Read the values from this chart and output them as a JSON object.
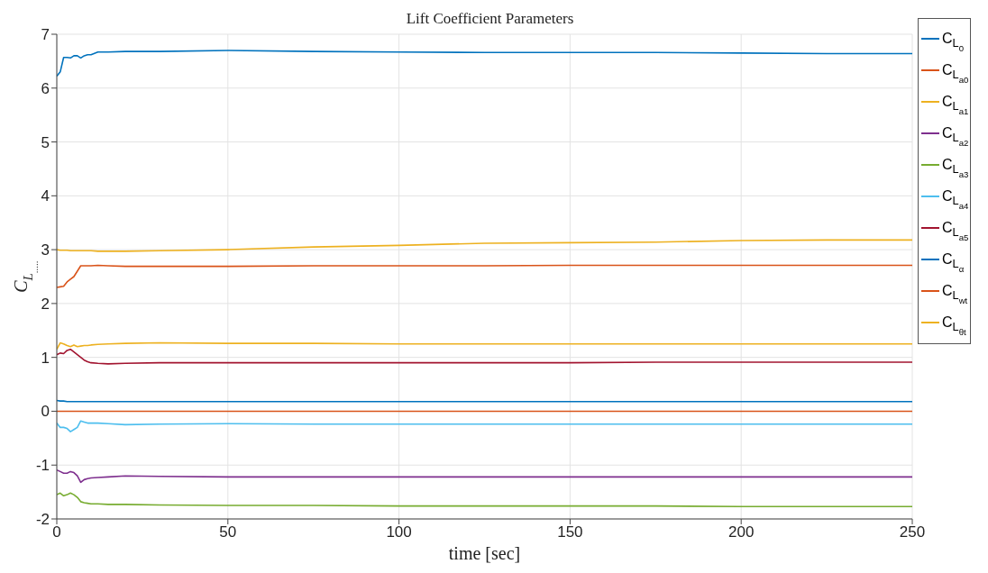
{
  "chart_data": {
    "type": "line",
    "title": "Lift Coefficient Parameters",
    "xlabel": "time [sec]",
    "ylabel": "C$_{L}$$_{.....}$",
    "x": [
      0,
      1,
      2,
      3,
      4,
      5,
      6,
      7,
      8,
      9,
      10,
      12,
      15,
      20,
      30,
      50,
      75,
      100,
      125,
      150,
      175,
      200,
      225,
      250
    ],
    "series": [
      {
        "name": "C$_{L}$$_{0}$",
        "color": "#0072bd",
        "values": [
          6.22,
          6.3,
          6.57,
          6.57,
          6.56,
          6.6,
          6.6,
          6.56,
          6.6,
          6.62,
          6.62,
          6.67,
          6.67,
          6.68,
          6.68,
          6.7,
          6.68,
          6.67,
          6.66,
          6.66,
          6.66,
          6.65,
          6.64,
          6.64
        ]
      },
      {
        "name": "C$_{L}$$_{a0}$",
        "color": "#d95319",
        "values": [
          2.3,
          2.31,
          2.32,
          2.4,
          2.45,
          2.5,
          2.6,
          2.7,
          2.7,
          2.7,
          2.7,
          2.71,
          2.7,
          2.69,
          2.69,
          2.69,
          2.7,
          2.7,
          2.7,
          2.71,
          2.71,
          2.71,
          2.71,
          2.71
        ]
      },
      {
        "name": "C$_{L}$$_{a1}$",
        "color": "#edb120",
        "values": [
          3.0,
          2.99,
          2.99,
          2.99,
          2.98,
          2.98,
          2.98,
          2.98,
          2.98,
          2.98,
          2.98,
          2.97,
          2.97,
          2.97,
          2.98,
          3.0,
          3.05,
          3.08,
          3.12,
          3.13,
          3.14,
          3.17,
          3.18,
          3.18
        ]
      },
      {
        "name": "C$_{L}$$_{a2}$",
        "color": "#7e2f8e",
        "values": [
          -1.09,
          -1.12,
          -1.15,
          -1.15,
          -1.12,
          -1.14,
          -1.2,
          -1.32,
          -1.27,
          -1.25,
          -1.24,
          -1.23,
          -1.22,
          -1.2,
          -1.21,
          -1.22,
          -1.22,
          -1.22,
          -1.22,
          -1.22,
          -1.22,
          -1.22,
          -1.22,
          -1.22
        ]
      },
      {
        "name": "C$_{L}$$_{a3}$",
        "color": "#77ac30",
        "values": [
          -1.55,
          -1.52,
          -1.57,
          -1.55,
          -1.52,
          -1.55,
          -1.6,
          -1.68,
          -1.7,
          -1.71,
          -1.72,
          -1.72,
          -1.73,
          -1.73,
          -1.74,
          -1.75,
          -1.75,
          -1.76,
          -1.76,
          -1.76,
          -1.76,
          -1.77,
          -1.77,
          -1.77
        ]
      },
      {
        "name": "C$_{L}$$_{a4}$",
        "color": "#4dbeee",
        "values": [
          -0.22,
          -0.3,
          -0.3,
          -0.32,
          -0.38,
          -0.34,
          -0.3,
          -0.18,
          -0.2,
          -0.22,
          -0.22,
          -0.22,
          -0.23,
          -0.25,
          -0.24,
          -0.23,
          -0.24,
          -0.24,
          -0.24,
          -0.24,
          -0.24,
          -0.24,
          -0.24,
          -0.24
        ]
      },
      {
        "name": "C$_{L}$$_{a5}$",
        "color": "#a2142f",
        "values": [
          1.05,
          1.08,
          1.07,
          1.13,
          1.15,
          1.1,
          1.05,
          1.0,
          0.95,
          0.92,
          0.9,
          0.89,
          0.88,
          0.89,
          0.9,
          0.9,
          0.9,
          0.9,
          0.9,
          0.9,
          0.91,
          0.91,
          0.91,
          0.91
        ]
      },
      {
        "name": "C$_{L}$$_{α}$",
        "color": "#0072bd",
        "values": [
          0.2,
          0.19,
          0.19,
          0.18,
          0.18,
          0.18,
          0.18,
          0.18,
          0.18,
          0.18,
          0.18,
          0.18,
          0.18,
          0.18,
          0.18,
          0.18,
          0.18,
          0.18,
          0.18,
          0.18,
          0.18,
          0.18,
          0.18,
          0.18
        ]
      },
      {
        "name": "C$_{L}$$_{wt}$",
        "color": "#d95319",
        "values": [
          0,
          0,
          0,
          0,
          0,
          0,
          0,
          0,
          0,
          0,
          0,
          0,
          0,
          0,
          0,
          0,
          0,
          0,
          0,
          0,
          0,
          0,
          0,
          0
        ]
      },
      {
        "name": "C$_{L}$$_{θt}$",
        "color": "#edb120",
        "values": [
          1.15,
          1.27,
          1.25,
          1.22,
          1.2,
          1.23,
          1.2,
          1.21,
          1.22,
          1.22,
          1.23,
          1.24,
          1.25,
          1.26,
          1.27,
          1.26,
          1.26,
          1.25,
          1.25,
          1.25,
          1.25,
          1.25,
          1.25,
          1.25
        ]
      }
    ],
    "xlim": [
      0,
      250
    ],
    "xticks": [
      0,
      50,
      100,
      150,
      200,
      250
    ],
    "ylim": [
      -2,
      7
    ],
    "yticks": [
      -2,
      -1,
      0,
      1,
      2,
      3,
      4,
      5,
      6,
      7
    ],
    "grid": true,
    "legend": "right",
    "marker": "none",
    "line_style": "solid"
  }
}
